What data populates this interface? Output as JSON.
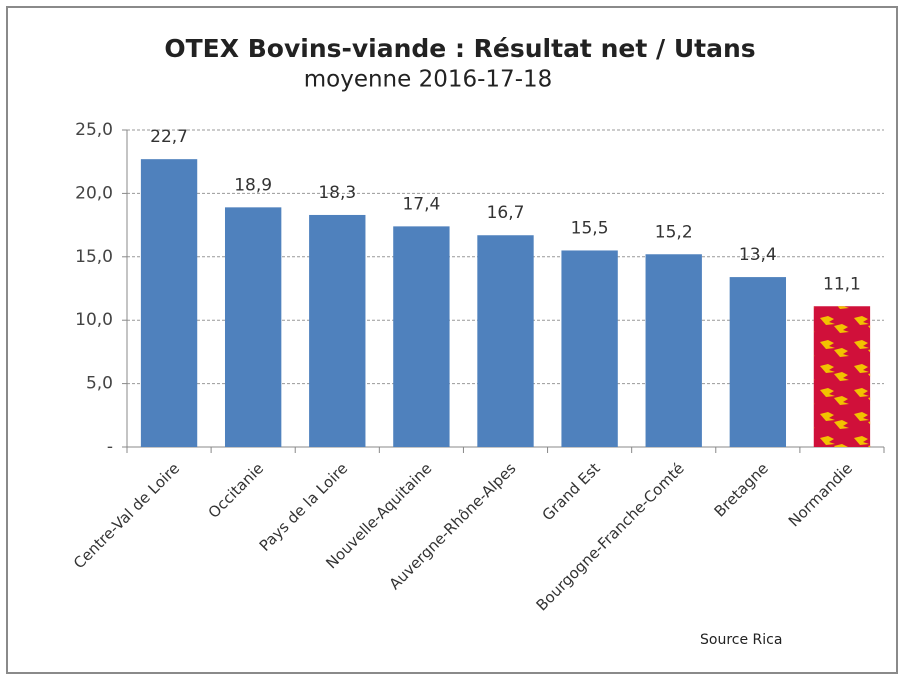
{
  "chart_data": {
    "type": "bar",
    "title": "OTEX Bovins-viande : Résultat net / Utans",
    "subtitle": "moyenne 2016-17-18",
    "categories": [
      "Centre-Val de Loire",
      "Occitanie",
      "Pays de la Loire",
      "Nouvelle-Aquitaine",
      "Auvergne-Rhône-Alpes",
      "Grand Est",
      "Bourgogne-Franche-Comté",
      "Bretagne",
      "Normandie"
    ],
    "values": [
      22.7,
      18.9,
      18.3,
      17.4,
      16.7,
      15.5,
      15.2,
      13.4,
      11.1
    ],
    "value_labels": [
      "22,7",
      "18,9",
      "18,3",
      "17,4",
      "16,7",
      "15,5",
      "15,2",
      "13,4",
      "11,1"
    ],
    "colors": [
      "#4f81bd",
      "#4f81bd",
      "#4f81bd",
      "#4f81bd",
      "#4f81bd",
      "#4f81bd",
      "#4f81bd",
      "#4f81bd",
      "#d0103a"
    ],
    "ylim": [
      0,
      25
    ],
    "yticks": [
      {
        "value": 0,
        "label": "-"
      },
      {
        "value": 5,
        "label": "5,0"
      },
      {
        "value": 10,
        "label": "10,0"
      },
      {
        "value": 15,
        "label": "15,0"
      },
      {
        "value": 20,
        "label": "20,0"
      },
      {
        "value": 25,
        "label": "25,0"
      }
    ],
    "grid": true,
    "source": "Source Rica"
  }
}
